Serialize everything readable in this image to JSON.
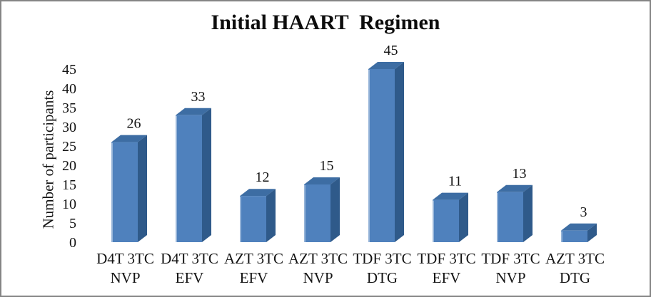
{
  "frame": {
    "border_color": "#858585",
    "background": "#ffffff"
  },
  "chart_data": {
    "type": "bar",
    "style": "3d-column",
    "title": "Initial HAART  Regimen",
    "xlabel": "",
    "ylabel": "Number of participants",
    "categories": [
      "D4T 3TC NVP",
      "D4T 3TC EFV",
      "AZT 3TC EFV",
      "AZT 3TC NVP",
      "TDF 3TC DTG",
      "TDF 3TC EFV",
      "TDF 3TC NVP",
      "AZT 3TC DTG"
    ],
    "values": [
      26,
      33,
      12,
      15,
      45,
      11,
      13,
      3
    ],
    "yticks": [
      0,
      5,
      10,
      15,
      20,
      25,
      30,
      35,
      40,
      45
    ],
    "ylim": [
      0,
      45
    ],
    "grid": false,
    "legend": false,
    "data_labels": true,
    "colors": {
      "bar_front": "#4f81bd",
      "bar_top": "#3d6da3",
      "bar_side": "#2f5a8a",
      "bar_highlight": "#a8c2e0",
      "text": "#141414"
    }
  }
}
